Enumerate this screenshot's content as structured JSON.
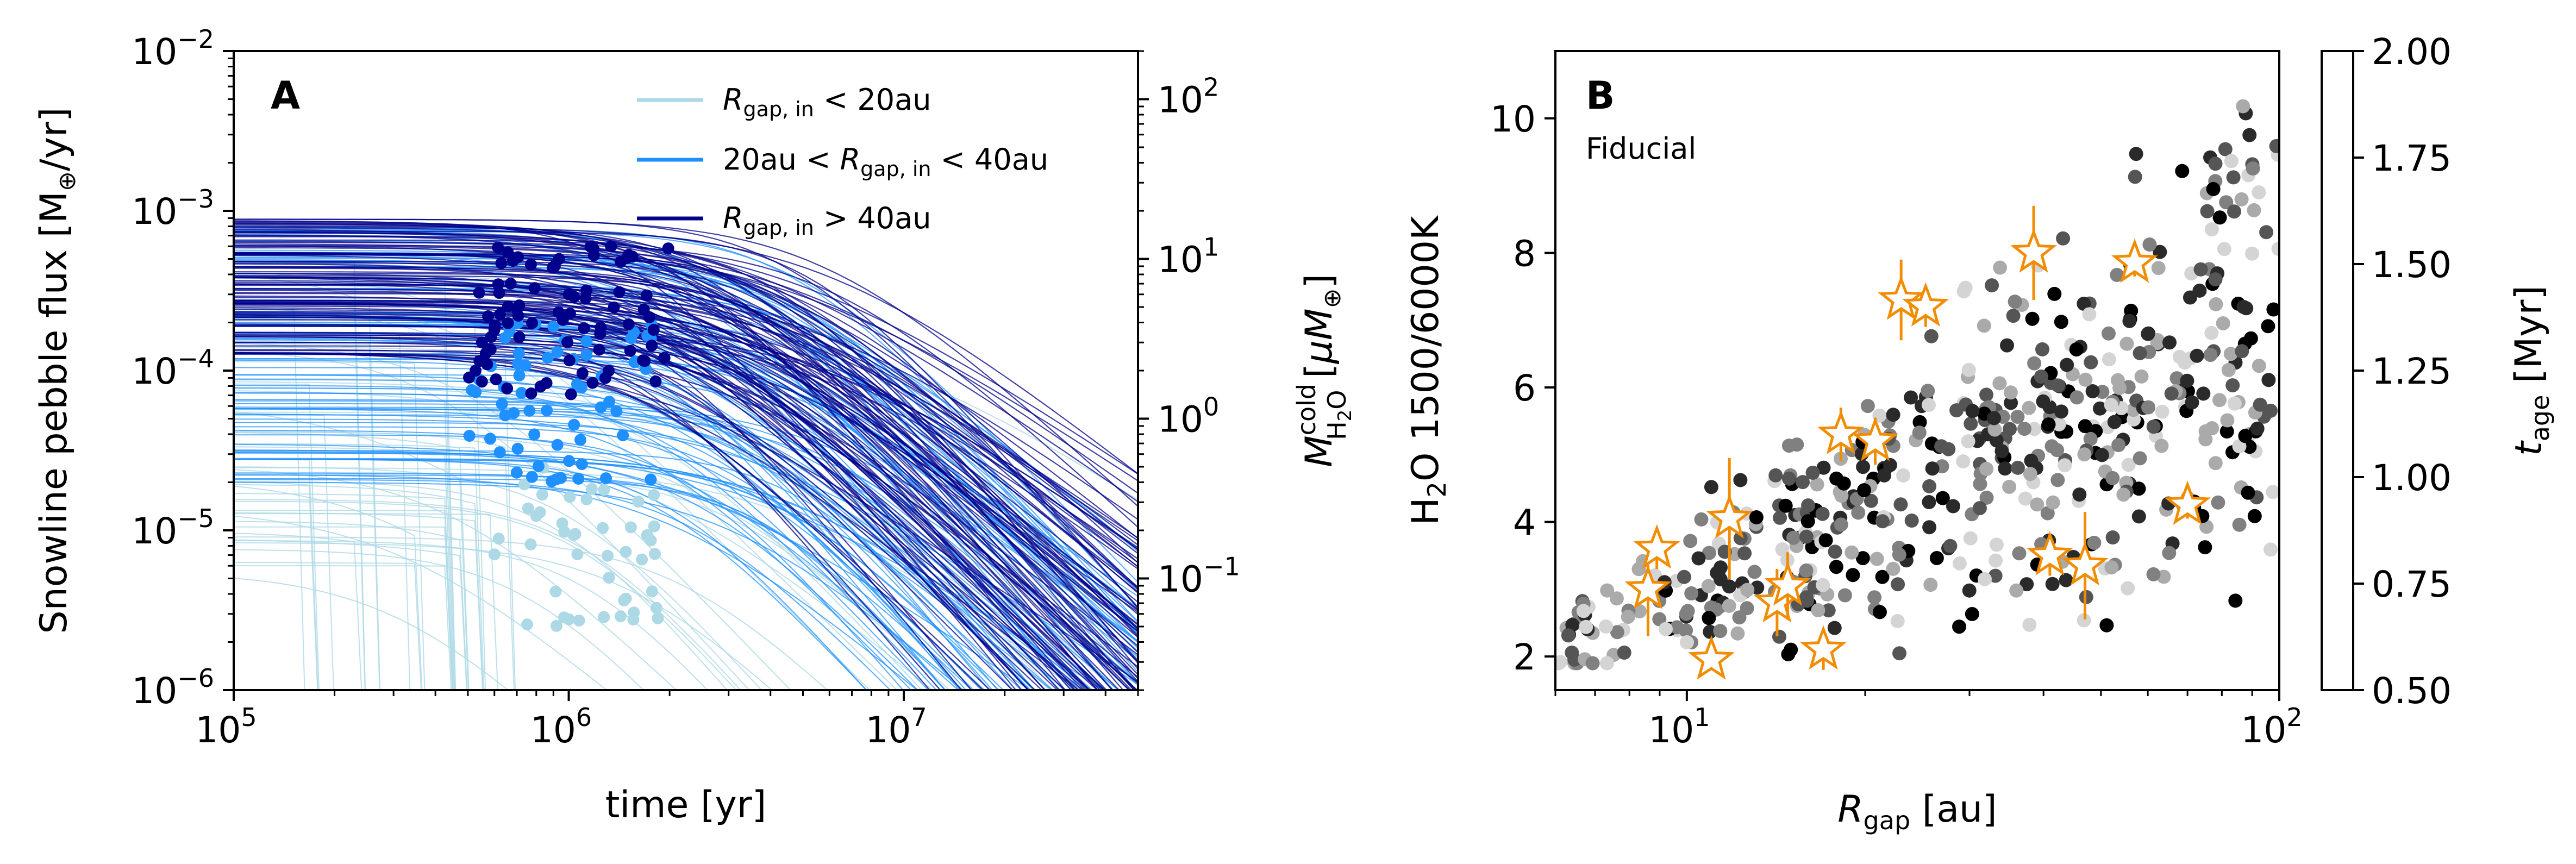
{
  "chart_data": [
    {
      "panel": "A",
      "type": "line",
      "title": "",
      "xlabel": "time [yr]",
      "ylabel": "Snowline pebble flux [M⊕/yr]",
      "ylabel_right": "M_H2O^cold [μM⊕]",
      "xscale": "log",
      "yscale": "log",
      "xlim": [
        100000,
        50000000
      ],
      "ylim": [
        1e-06,
        0.01
      ],
      "right_ylim": [
        0.02,
        200
      ],
      "x_ticks": [
        {
          "value": 100000,
          "base": "10",
          "exp": "5"
        },
        {
          "value": 1000000,
          "base": "10",
          "exp": "6"
        },
        {
          "value": 10000000,
          "base": "10",
          "exp": "7"
        }
      ],
      "y_ticks": [
        {
          "value": 1e-06,
          "base": "10",
          "exp": "−6"
        },
        {
          "value": 1e-05,
          "base": "10",
          "exp": "−5"
        },
        {
          "value": 0.0001,
          "base": "10",
          "exp": "−4"
        },
        {
          "value": 0.001,
          "base": "10",
          "exp": "−3"
        },
        {
          "value": 0.01,
          "base": "10",
          "exp": "−2"
        }
      ],
      "right_ticks": [
        {
          "value": 0.1,
          "base": "10",
          "exp": "−1"
        },
        {
          "value": 1,
          "base": "10",
          "exp": "0"
        },
        {
          "value": 10,
          "base": "10",
          "exp": "1"
        },
        {
          "value": 100,
          "base": "10",
          "exp": "2"
        }
      ],
      "legend_position": "top-right",
      "series": [
        {
          "name": "R_gap,in < 20au",
          "label": "Rgap,in < 20au",
          "color": "#add8e6",
          "n_lines": 60,
          "flux_range": [
            5e-06,
            0.0005
          ],
          "age_range": [
            600000,
            1900000
          ],
          "point_flux_range": [
            2.5e-06,
            2.5e-05
          ]
        },
        {
          "name": "20au < R_gap,in < 40au",
          "label": "20au < Rgap,in < 40au",
          "color": "#1e90ff",
          "n_lines": 90,
          "flux_range": [
            2e-05,
            0.0008
          ],
          "age_range": [
            500000,
            1800000
          ],
          "point_flux_range": [
            2e-05,
            0.0002
          ]
        },
        {
          "name": "R_gap,in > 40au",
          "label": "Rgap,in > 40au",
          "color": "#00008b",
          "n_lines": 110,
          "flux_range": [
            0.00012,
            0.0009
          ],
          "age_range": [
            500000,
            2000000
          ],
          "point_flux_range": [
            7e-05,
            0.0006
          ]
        }
      ]
    },
    {
      "panel": "B",
      "type": "scatter",
      "title": "",
      "annotation": "Fiducial",
      "xlabel": "R_gap [au]",
      "ylabel": "H2O 1500/6000K",
      "xscale": "log",
      "xlim": [
        6,
        100
      ],
      "ylim": [
        1.5,
        11
      ],
      "x_ticks": [
        {
          "value": 10,
          "base": "10",
          "exp": "1"
        },
        {
          "value": 100,
          "base": "10",
          "exp": "2"
        }
      ],
      "y_ticks": [
        2,
        4,
        6,
        8,
        10
      ],
      "colorbar": {
        "label": "t_age [Myr]",
        "ticks": [
          "0.50",
          "0.75",
          "1.00",
          "1.25",
          "1.50",
          "1.75",
          "2.00"
        ],
        "colors": [
          "#000000",
          "#2a2a2a",
          "#555555",
          "#808080",
          "#aaaaaa",
          "#d4d4d4"
        ]
      },
      "model_points": {
        "count": 560,
        "x_range": [
          6,
          100
        ],
        "y_range": [
          1.9,
          10.8
        ]
      },
      "observations": {
        "color": "#f28c00",
        "points": [
          {
            "x": 8.6,
            "y": 3.0,
            "err": 0.7
          },
          {
            "x": 8.9,
            "y": 3.6,
            "err": 0.3
          },
          {
            "x": 11.0,
            "y": 1.95,
            "err": 0.15
          },
          {
            "x": 11.8,
            "y": 4.05,
            "err": 0.9
          },
          {
            "x": 14.2,
            "y": 2.8,
            "err": 0.5
          },
          {
            "x": 14.8,
            "y": 3.05,
            "err": 0.5
          },
          {
            "x": 17.0,
            "y": 2.1,
            "err": 0.3
          },
          {
            "x": 18.2,
            "y": 5.3,
            "err": 0.4
          },
          {
            "x": 20.8,
            "y": 5.2,
            "err": 0.35
          },
          {
            "x": 23.0,
            "y": 7.3,
            "err": 0.6
          },
          {
            "x": 25.3,
            "y": 7.2,
            "err": 0.3
          },
          {
            "x": 38.5,
            "y": 8.0,
            "err": 0.7
          },
          {
            "x": 41.0,
            "y": 3.5,
            "err": 0.3
          },
          {
            "x": 47.0,
            "y": 3.35,
            "err": 0.8
          },
          {
            "x": 57.0,
            "y": 7.85,
            "err": 0.2
          },
          {
            "x": 70.0,
            "y": 4.25,
            "err": 0.2
          }
        ]
      }
    }
  ]
}
